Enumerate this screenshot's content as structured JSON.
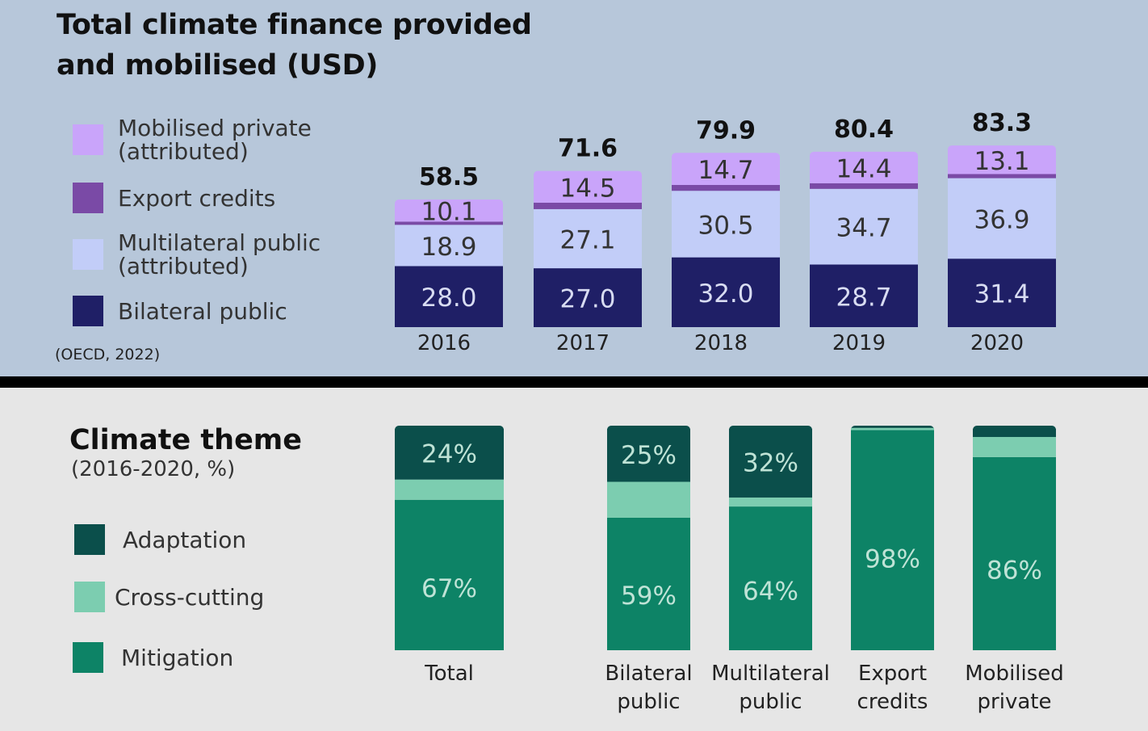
{
  "finance": {
    "title_line1": "Total climate finance provided",
    "title_line2": "and mobilised (USD)",
    "source": "(OECD, 2022)",
    "legend": [
      {
        "line1": "Mobilised private",
        "line2": "(attributed)"
      },
      {
        "line1": "Export credits",
        "line2": ""
      },
      {
        "line1": "Multilateral public",
        "line2": "(attributed)"
      },
      {
        "line1": "Bilateral public",
        "line2": ""
      }
    ]
  },
  "theme": {
    "title": "Climate theme",
    "subtitle": "(2016-2020, %)",
    "legend": [
      "Adaptation",
      "Cross-cutting",
      "Mitigation"
    ]
  },
  "colors": {
    "bilateral": "#1f1f66",
    "multilateral": "#c2cdf8",
    "export": "#7a4aa6",
    "mobilised": "#c9a4fa",
    "adaptation": "#0b4f4b",
    "crosscutting": "#7ccdb0",
    "mitigation": "#0d8366"
  },
  "chart_data": [
    {
      "type": "bar",
      "stacked": true,
      "categories": [
        "2016",
        "2017",
        "2018",
        "2019",
        "2020"
      ],
      "totals": [
        "58.5",
        "71.6",
        "79.9",
        "80.4",
        "83.3"
      ],
      "series": [
        {
          "name": "Bilateral public",
          "values": [
            28.0,
            27.0,
            32.0,
            28.7,
            31.4
          ],
          "labels": [
            "28.0",
            "27.0",
            "32.0",
            "28.7",
            "31.4"
          ]
        },
        {
          "name": "Multilateral public (attributed)",
          "values": [
            18.9,
            27.1,
            30.5,
            34.7,
            36.9
          ],
          "labels": [
            "18.9",
            "27.1",
            "30.5",
            "34.7",
            "36.9"
          ]
        },
        {
          "name": "Export credits",
          "values": [
            1.5,
            3.0,
            2.7,
            2.6,
            1.9
          ],
          "labels": [
            "",
            "",
            "",
            "",
            ""
          ]
        },
        {
          "name": "Mobilised private (attributed)",
          "values": [
            10.1,
            14.5,
            14.7,
            14.4,
            13.1
          ],
          "labels": [
            "10.1",
            "14.5",
            "14.7",
            "14.4",
            "13.1"
          ]
        }
      ]
    },
    {
      "type": "bar",
      "stacked": true,
      "percent": true,
      "categories": [
        [
          "Total"
        ],
        [
          "Bilateral",
          "public"
        ],
        [
          "Multilateral",
          "public"
        ],
        [
          "Export",
          "credits"
        ],
        [
          "Mobilised",
          "private"
        ]
      ],
      "series": [
        {
          "name": "Mitigation",
          "values": [
            67,
            59,
            64,
            98,
            86
          ],
          "labels": [
            "67%",
            "59%",
            "64%",
            "98%",
            "86%"
          ]
        },
        {
          "name": "Cross-cutting",
          "values": [
            9,
            16,
            4,
            1,
            9
          ],
          "labels": [
            "",
            "",
            "",
            "",
            ""
          ]
        },
        {
          "name": "Adaptation",
          "values": [
            24,
            25,
            32,
            1,
            5
          ],
          "labels": [
            "24%",
            "25%",
            "32%",
            "",
            ""
          ]
        }
      ]
    }
  ]
}
